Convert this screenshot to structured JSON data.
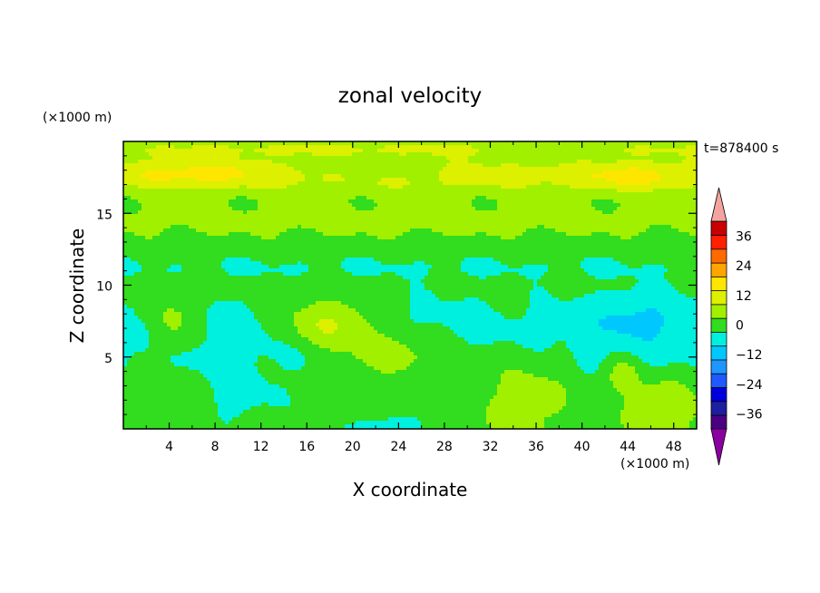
{
  "chart_data": {
    "type": "heatmap",
    "title": "zonal velocity",
    "time_label": "t=878400 s",
    "xlabel": "X coordinate",
    "ylabel": "Z coordinate",
    "x_unit": "(×1000 m)",
    "y_unit": "(×1000 m)",
    "xlim": [
      0,
      50
    ],
    "ylim": [
      0,
      20
    ],
    "x_ticks": [
      "4",
      "8",
      "12",
      "16",
      "20",
      "24",
      "28",
      "32",
      "36",
      "40",
      "44",
      "48"
    ],
    "y_ticks": [
      "5",
      "10",
      "15"
    ],
    "colorbar": {
      "labels": [
        "36",
        "24",
        "12",
        "0",
        "−12",
        "−24",
        "−36"
      ],
      "levels": [
        -42,
        -36,
        -30,
        -24,
        -18,
        -12,
        -6,
        0,
        6,
        12,
        18,
        24,
        30,
        36,
        42
      ],
      "colors": [
        "#4b0082",
        "#1e1ea0",
        "#0000dc",
        "#1e5aff",
        "#1e96ff",
        "#00c8ff",
        "#00f0e0",
        "#32dc1e",
        "#a0f000",
        "#dcf000",
        "#ffe600",
        "#ffa500",
        "#ff6a00",
        "#ff2000",
        "#c80000"
      ],
      "under_color": "#8b00a0",
      "over_color": "#f4a4a0"
    },
    "grid": false
  }
}
